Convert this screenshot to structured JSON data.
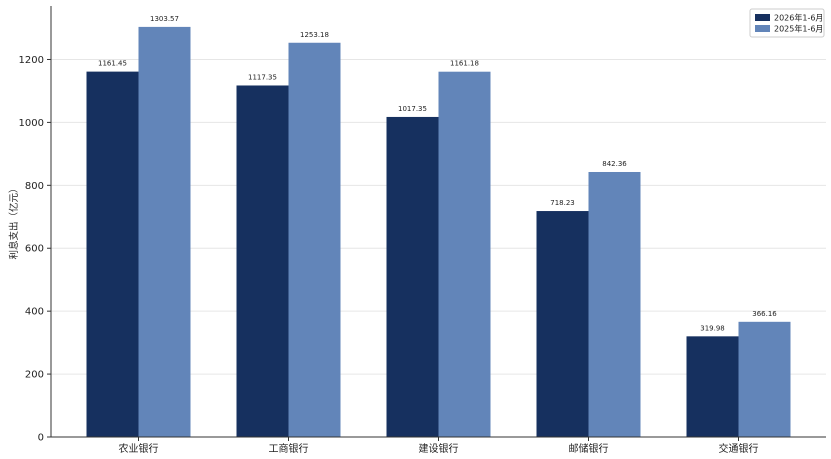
{
  "chart_data": {
    "type": "bar",
    "categories": [
      "农业银行",
      "工商银行",
      "建设银行",
      "邮储银行",
      "交通银行"
    ],
    "series": [
      {
        "name": "2026年1-6月",
        "values": [
          1161.45,
          1117.35,
          1017.35,
          718.23,
          319.98
        ],
        "color": "#16305f"
      },
      {
        "name": "2025年1-6月",
        "values": [
          1303.57,
          1253.18,
          1161.18,
          842.36,
          366.16
        ],
        "color": "#6285b9"
      }
    ],
    "data_labels": [
      [
        "1161.45",
        "1117.35",
        "1017.35",
        "718.23",
        "319.98"
      ],
      [
        "1303.57",
        "1253.18",
        "1161.18",
        "842.36",
        "366.16"
      ]
    ],
    "ylabel": "利息支出（亿元）",
    "xlabel": "",
    "ylim": [
      0,
      1370
    ],
    "yticks": [
      "0",
      "200",
      "400",
      "600",
      "800",
      "1000",
      "1200"
    ],
    "ytick_values": [
      0,
      200,
      400,
      600,
      800,
      1000,
      1200
    ],
    "grid": "horizontal",
    "legend": "top-right"
  }
}
